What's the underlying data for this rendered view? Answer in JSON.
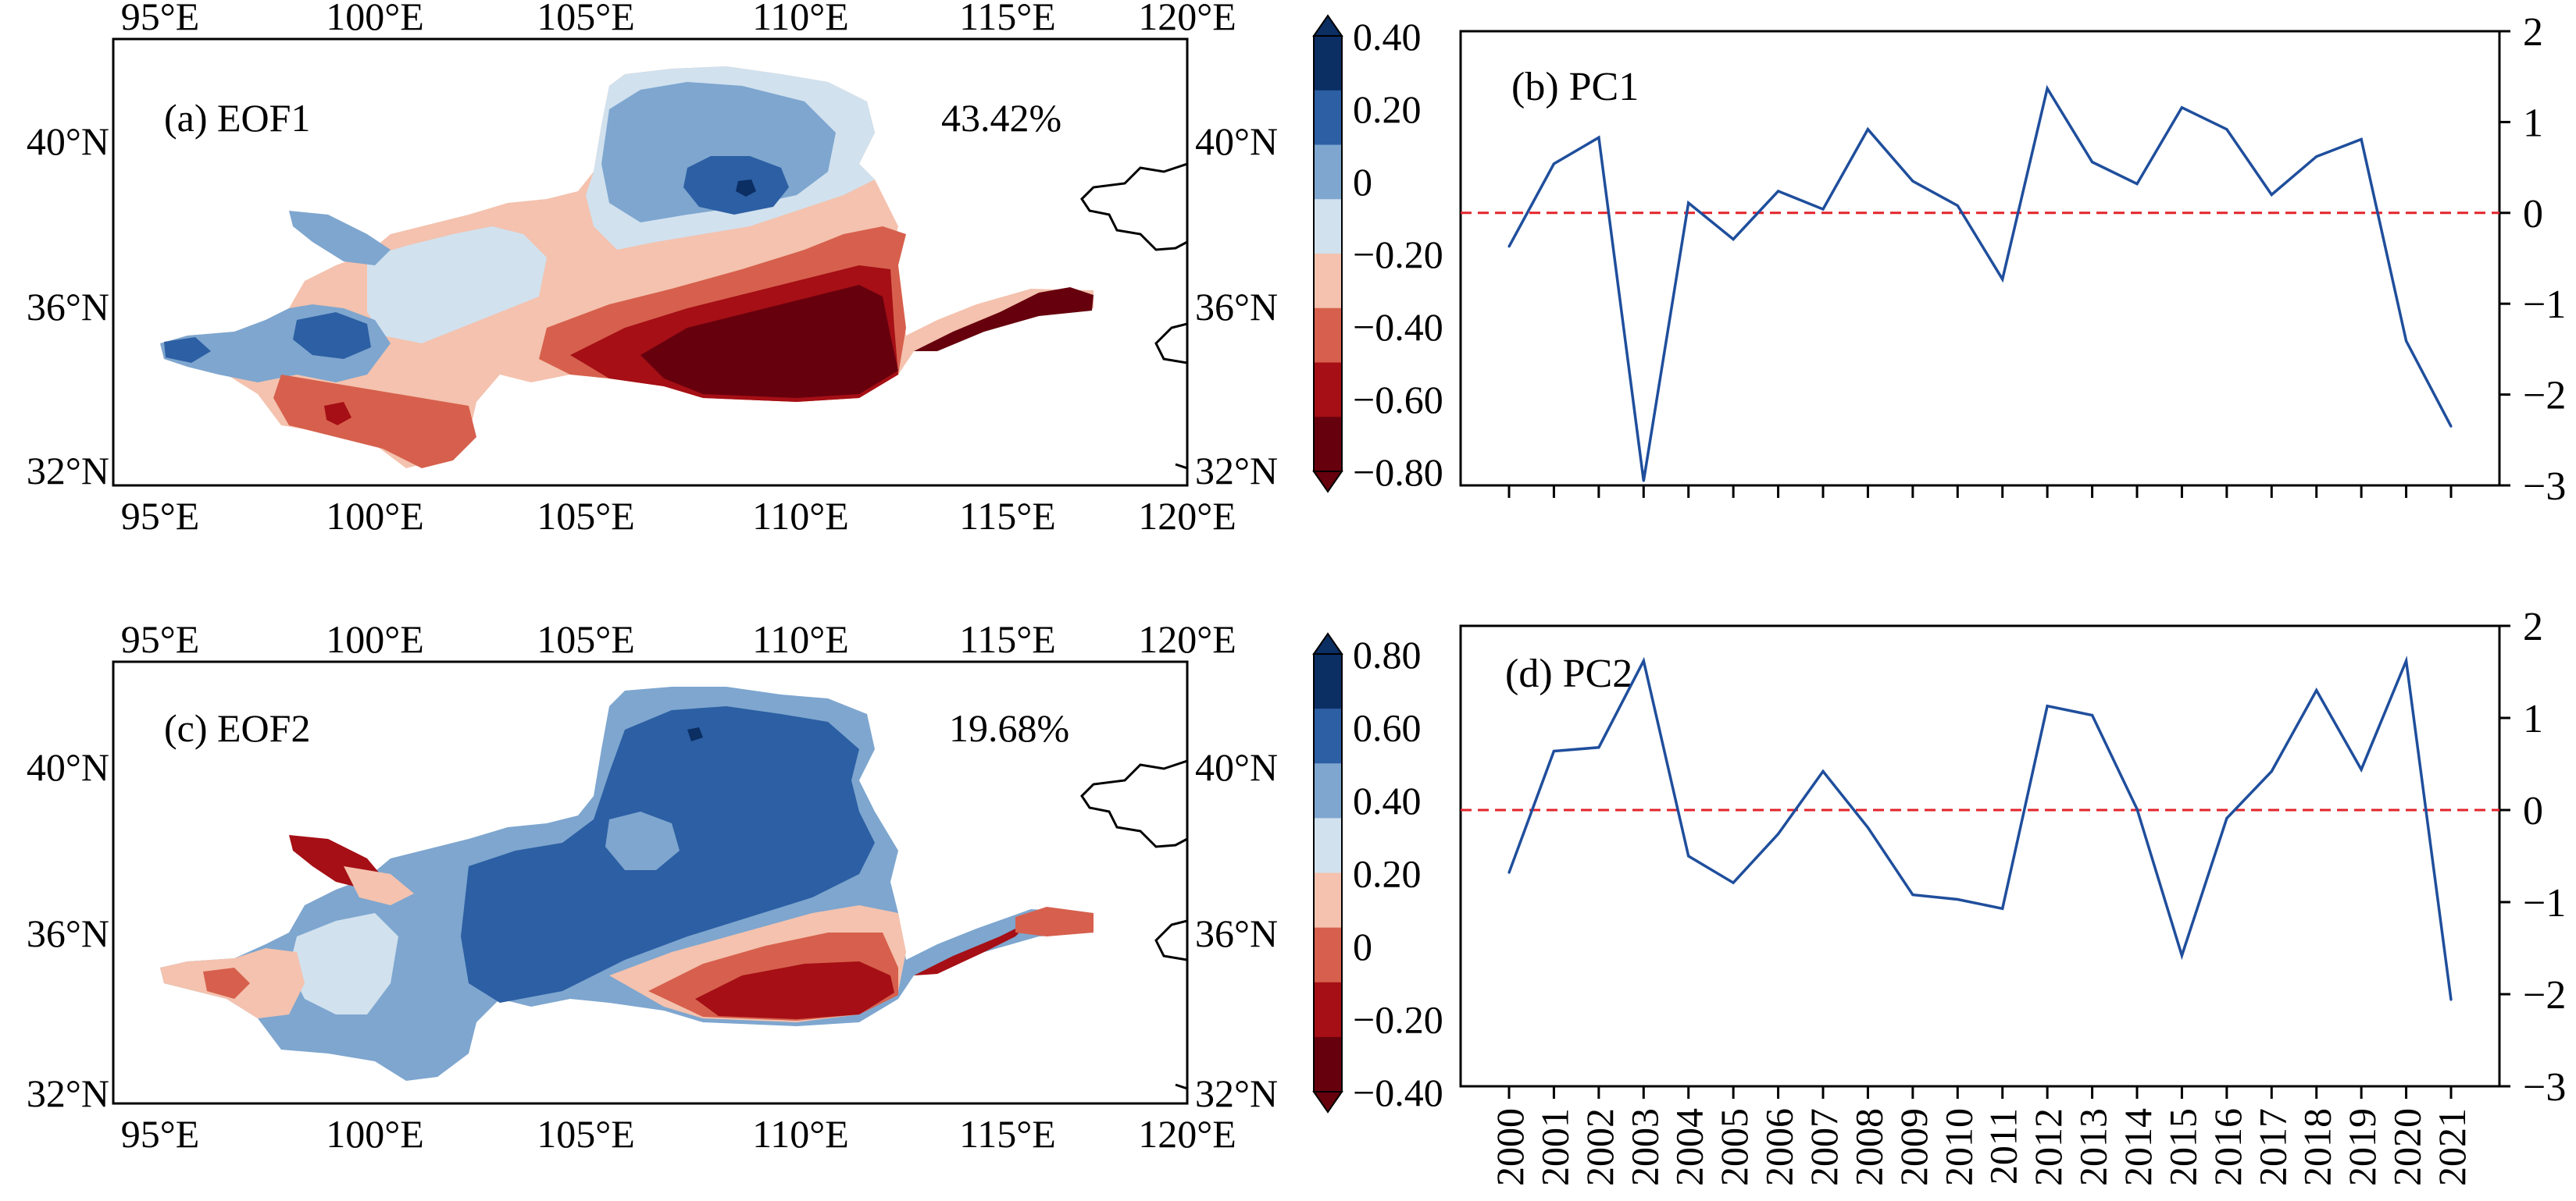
{
  "colors": {
    "line": "#1f4e9c",
    "zero_line": "#e3242b",
    "frame": "#000000",
    "eof1_scale": [
      "#67000d",
      "#a50f15",
      "#d6604d",
      "#f4c2ae",
      "#d1e1ee",
      "#7ea6cf",
      "#2c5fa3",
      "#0b2e63"
    ],
    "eof2_scale": [
      "#67000d",
      "#a50f15",
      "#d6604d",
      "#f4c2ae",
      "#d1e1ee",
      "#7ea6cf",
      "#2c5fa3",
      "#0b2e63"
    ]
  },
  "maps": [
    {
      "label": "(a) EOF1",
      "variance": "43.42%",
      "top_lon_ticks": [
        "95°E",
        "100°E",
        "105°E",
        "110°E",
        "115°E",
        "120°E"
      ],
      "bottom_lon_ticks": [
        "95°E",
        "100°E",
        "105°E",
        "110°E",
        "115°E",
        "120°E"
      ],
      "left_lat_ticks": [
        "40°N",
        "36°N",
        "32°N"
      ],
      "right_lat_ticks": [
        "40°N",
        "36°N",
        "32°N"
      ],
      "colorbar_ticks": [
        "0.40",
        "0.20",
        "0",
        "−0.20",
        "−0.40",
        "−0.60",
        "−0.80"
      ]
    },
    {
      "label": "(c) EOF2",
      "variance": "19.68%",
      "top_lon_ticks": [
        "95°E",
        "100°E",
        "105°E",
        "110°E",
        "115°E",
        "120°E"
      ],
      "bottom_lon_ticks": [
        "95°E",
        "100°E",
        "105°E",
        "110°E",
        "115°E",
        "120°E"
      ],
      "left_lat_ticks": [
        "40°N",
        "36°N",
        "32°N"
      ],
      "right_lat_ticks": [
        "40°N",
        "36°N",
        "32°N"
      ],
      "colorbar_ticks": [
        "0.80",
        "0.60",
        "0.40",
        "0.20",
        "0",
        "−0.20",
        "−0.40"
      ]
    }
  ],
  "chart_data": [
    {
      "type": "line",
      "title": "(b) PC1",
      "x": [
        2000,
        2001,
        2002,
        2003,
        2004,
        2005,
        2006,
        2007,
        2008,
        2009,
        2010,
        2011,
        2012,
        2013,
        2014,
        2015,
        2016,
        2017,
        2018,
        2019,
        2020,
        2021
      ],
      "values": [
        -0.37,
        0.54,
        0.83,
        -2.95,
        0.11,
        -0.29,
        0.24,
        0.04,
        0.92,
        0.35,
        0.08,
        -0.73,
        1.37,
        0.56,
        0.32,
        1.16,
        0.92,
        0.2,
        0.62,
        0.81,
        -1.41,
        -2.35
      ],
      "ylim": [
        -3,
        2
      ],
      "yticks": [
        "2",
        "1",
        "0",
        "−1",
        "−2",
        "−3"
      ],
      "ytick_values": [
        2,
        1,
        0,
        -1,
        -2,
        -3
      ],
      "reference_line": 0,
      "grid": false
    },
    {
      "type": "line",
      "title": "(d) PC2",
      "x": [
        2000,
        2001,
        2002,
        2003,
        2004,
        2005,
        2006,
        2007,
        2008,
        2009,
        2010,
        2011,
        2012,
        2013,
        2014,
        2015,
        2016,
        2017,
        2018,
        2019,
        2020,
        2021
      ],
      "values": [
        -0.68,
        0.64,
        0.68,
        1.62,
        -0.5,
        -0.79,
        -0.26,
        0.42,
        -0.19,
        -0.92,
        -0.97,
        -1.07,
        1.13,
        1.03,
        0.01,
        -1.58,
        -0.09,
        0.42,
        1.3,
        0.44,
        1.62,
        -2.06
      ],
      "ylim": [
        -3,
        2
      ],
      "yticks": [
        "2",
        "1",
        "0",
        "−1",
        "−2",
        "−3"
      ],
      "ytick_values": [
        2,
        1,
        0,
        -1,
        -2,
        -3
      ],
      "reference_line": 0,
      "grid": false,
      "xtick_labels": [
        "2000",
        "2001",
        "2002",
        "2003",
        "2004",
        "2005",
        "2006",
        "2007",
        "2008",
        "2009",
        "2010",
        "2011",
        "2012",
        "2013",
        "2014",
        "2015",
        "2016",
        "2017",
        "2018",
        "2019",
        "2020",
        "2021"
      ]
    }
  ]
}
